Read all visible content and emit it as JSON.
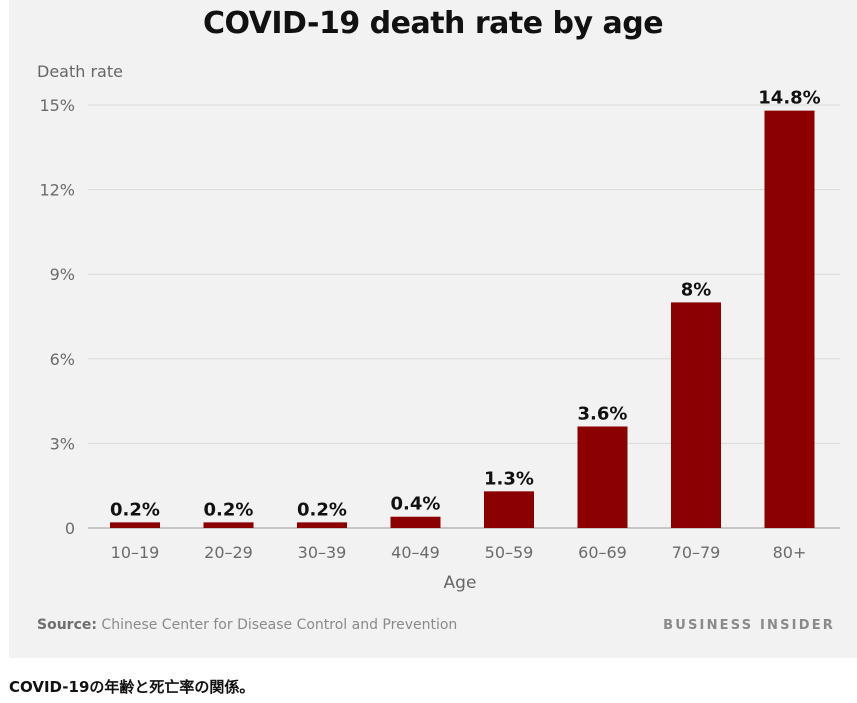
{
  "chart_data": {
    "type": "bar",
    "title": "COVID-19 death rate by age",
    "xlabel": "Age",
    "ylabel": "Death rate",
    "categories": [
      "10–19",
      "20–29",
      "30–39",
      "40–49",
      "50–59",
      "60–69",
      "70–79",
      "80+"
    ],
    "values": [
      0.2,
      0.2,
      0.2,
      0.4,
      1.3,
      3.6,
      8,
      14.8
    ],
    "data_labels": [
      "0.2%",
      "0.2%",
      "0.2%",
      "0.4%",
      "1.3%",
      "3.6%",
      "8%",
      "14.8%"
    ],
    "ylim": [
      0,
      15
    ],
    "yticks": [
      0,
      3,
      6,
      9,
      12,
      15
    ],
    "ytick_labels": [
      "0",
      "3%",
      "6%",
      "9%",
      "12%",
      "15%"
    ],
    "grid": true,
    "bar_color": "#8b0000"
  },
  "source_label": "Source:",
  "source_text": "Chinese Center for Disease Control and Prevention",
  "brand": "BUSINESS INSIDER",
  "caption": "COVID-19の年齢と死亡率の関係。"
}
